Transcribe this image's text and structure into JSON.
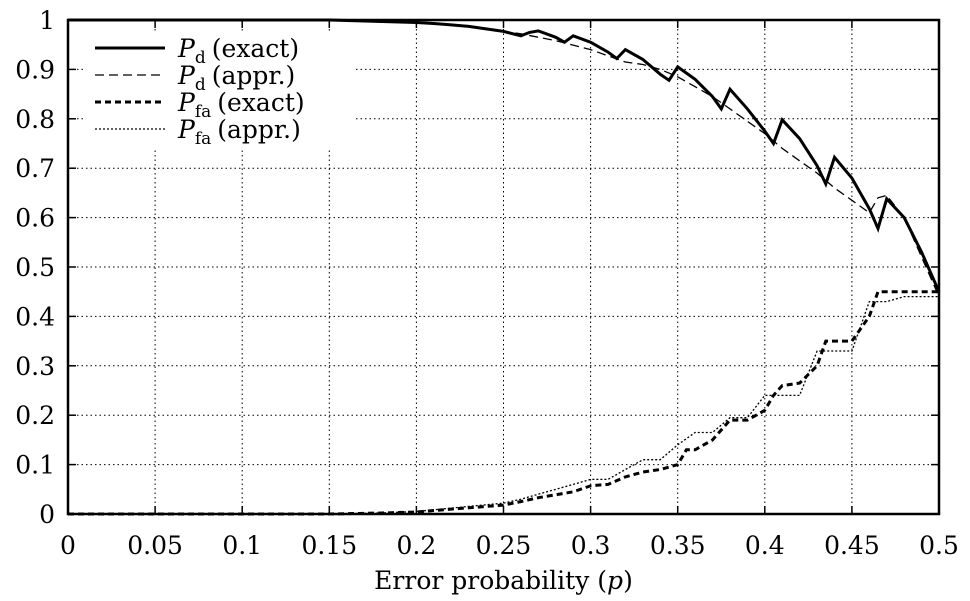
{
  "chart_data": {
    "type": "line",
    "title": "",
    "xlabel": "Error probability (p)",
    "xlabel_parts": {
      "prefix": "Error probability (",
      "var": "p",
      "suffix": ")"
    },
    "ylabel": "",
    "xlim": [
      0,
      0.5
    ],
    "ylim": [
      0,
      1
    ],
    "grid": true,
    "legend_position": "top-left",
    "xticks": [
      0,
      0.05,
      0.1,
      0.15,
      0.2,
      0.25,
      0.3,
      0.35,
      0.4,
      0.45,
      0.5
    ],
    "xtick_labels": [
      "0",
      "0.05",
      "0.1",
      "0.15",
      "0.2",
      "0.25",
      "0.3",
      "0.35",
      "0.4",
      "0.45",
      "0.5"
    ],
    "yticks": [
      0,
      0.1,
      0.2,
      0.3,
      0.4,
      0.5,
      0.6,
      0.7,
      0.8,
      0.9,
      1
    ],
    "ytick_labels": [
      "0",
      "0.1",
      "0.2",
      "0.3",
      "0.4",
      "0.5",
      "0.6",
      "0.7",
      "0.8",
      "0.9",
      "1"
    ],
    "series": [
      {
        "name": "Pd (exact)",
        "legend": {
          "sym": "P",
          "sub": "d",
          "text": "(exact)"
        },
        "style": "solid-thick",
        "x": [
          0,
          0.05,
          0.1,
          0.15,
          0.18,
          0.2,
          0.21,
          0.22,
          0.23,
          0.24,
          0.25,
          0.26,
          0.265,
          0.27,
          0.28,
          0.285,
          0.29,
          0.3,
          0.31,
          0.315,
          0.32,
          0.33,
          0.34,
          0.345,
          0.35,
          0.36,
          0.37,
          0.375,
          0.38,
          0.39,
          0.4,
          0.405,
          0.41,
          0.42,
          0.43,
          0.435,
          0.44,
          0.45,
          0.46,
          0.465,
          0.47,
          0.48,
          0.49,
          0.5
        ],
        "y": [
          1,
          1,
          1,
          1,
          0.997,
          0.995,
          0.993,
          0.99,
          0.987,
          0.982,
          0.977,
          0.968,
          0.975,
          0.978,
          0.965,
          0.955,
          0.968,
          0.955,
          0.935,
          0.922,
          0.94,
          0.92,
          0.89,
          0.878,
          0.905,
          0.88,
          0.845,
          0.82,
          0.86,
          0.82,
          0.775,
          0.75,
          0.798,
          0.76,
          0.705,
          0.668,
          0.722,
          0.68,
          0.618,
          0.578,
          0.638,
          0.6,
          0.53,
          0.45
        ]
      },
      {
        "name": "Pd (appr.)",
        "legend": {
          "sym": "P",
          "sub": "d",
          "text": "(appr.)"
        },
        "style": "dashed",
        "x": [
          0,
          0.05,
          0.1,
          0.15,
          0.2,
          0.22,
          0.24,
          0.26,
          0.28,
          0.3,
          0.32,
          0.33,
          0.34,
          0.35,
          0.36,
          0.37,
          0.38,
          0.39,
          0.4,
          0.41,
          0.42,
          0.43,
          0.44,
          0.45,
          0.46,
          0.465,
          0.47,
          0.48,
          0.49,
          0.5
        ],
        "y": [
          1,
          1,
          1,
          0.999,
          0.994,
          0.99,
          0.982,
          0.972,
          0.958,
          0.94,
          0.915,
          0.91,
          0.9,
          0.885,
          0.865,
          0.845,
          0.82,
          0.795,
          0.77,
          0.74,
          0.715,
          0.69,
          0.66,
          0.635,
          0.61,
          0.64,
          0.645,
          0.6,
          0.52,
          0.44
        ]
      },
      {
        "name": "Pfa (exact)",
        "legend": {
          "sym": "P",
          "sub": "fa",
          "text": "(exact)"
        },
        "style": "dashed-thick",
        "x": [
          0,
          0.15,
          0.18,
          0.2,
          0.22,
          0.25,
          0.26,
          0.27,
          0.29,
          0.3,
          0.31,
          0.32,
          0.33,
          0.34,
          0.35,
          0.355,
          0.36,
          0.37,
          0.38,
          0.39,
          0.4,
          0.405,
          0.41,
          0.42,
          0.43,
          0.435,
          0.44,
          0.45,
          0.46,
          0.465,
          0.47,
          0.48,
          0.49,
          0.5
        ],
        "y": [
          0,
          0,
          0.002,
          0.004,
          0.01,
          0.018,
          0.025,
          0.033,
          0.045,
          0.057,
          0.06,
          0.075,
          0.085,
          0.09,
          0.1,
          0.13,
          0.13,
          0.15,
          0.19,
          0.19,
          0.21,
          0.24,
          0.26,
          0.265,
          0.3,
          0.35,
          0.35,
          0.35,
          0.4,
          0.45,
          0.45,
          0.45,
          0.45,
          0.45
        ]
      },
      {
        "name": "Pfa (appr.)",
        "legend": {
          "sym": "P",
          "sub": "fa",
          "text": "(appr.)"
        },
        "style": "dotted",
        "x": [
          0,
          0.15,
          0.18,
          0.2,
          0.22,
          0.25,
          0.26,
          0.27,
          0.28,
          0.29,
          0.3,
          0.31,
          0.32,
          0.33,
          0.34,
          0.35,
          0.36,
          0.37,
          0.38,
          0.39,
          0.4,
          0.41,
          0.42,
          0.43,
          0.44,
          0.45,
          0.46,
          0.47,
          0.48,
          0.49,
          0.5
        ],
        "y": [
          0,
          0,
          0.002,
          0.005,
          0.012,
          0.022,
          0.03,
          0.04,
          0.05,
          0.06,
          0.07,
          0.07,
          0.09,
          0.11,
          0.11,
          0.14,
          0.165,
          0.165,
          0.195,
          0.195,
          0.24,
          0.24,
          0.24,
          0.33,
          0.33,
          0.33,
          0.43,
          0.43,
          0.44,
          0.44,
          0.44
        ]
      }
    ]
  }
}
